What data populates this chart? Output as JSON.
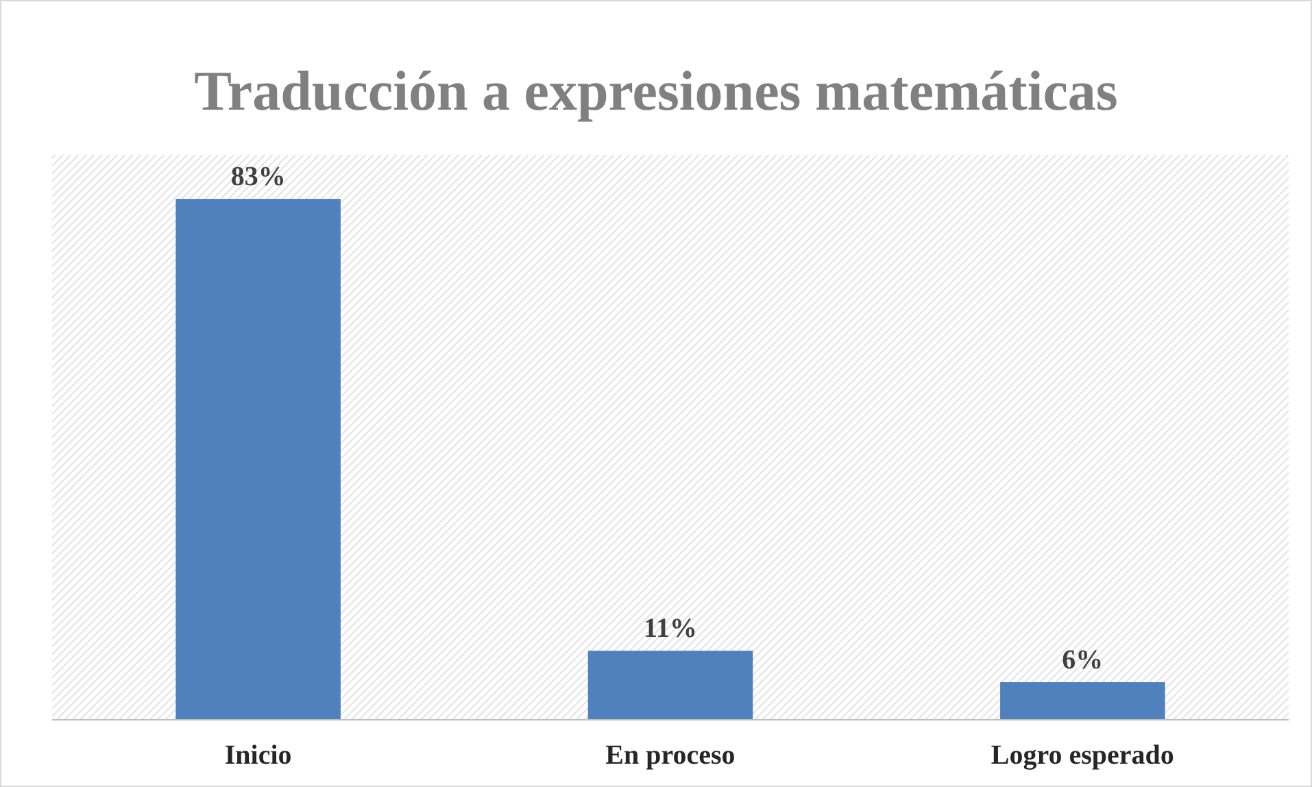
{
  "chart_data": {
    "type": "bar",
    "title": "Traducción a expresiones matemáticas",
    "categories": [
      "Inicio",
      "En proceso",
      "Logro esperado"
    ],
    "values": [
      83,
      11,
      6
    ],
    "value_labels": [
      "83%",
      "11%",
      "6%"
    ],
    "color": "#4f81bd",
    "ylim": [
      0,
      90
    ]
  }
}
